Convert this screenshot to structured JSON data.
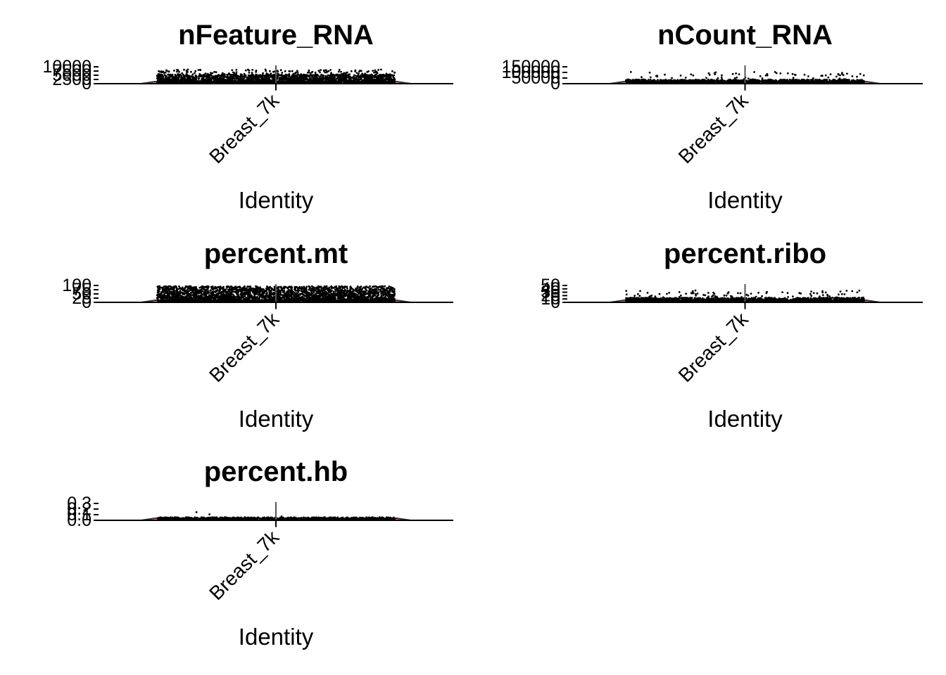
{
  "chart_data": [
    {
      "type": "violin",
      "title": "nFeature_RNA",
      "xlabel": "Identity",
      "ylabel": "",
      "categories": [
        "Breast_7k"
      ],
      "yticks": [
        "0",
        "2500",
        "5000",
        "7500",
        "10000"
      ],
      "ylim": [
        0,
        10000
      ],
      "values_summary": {
        "Breast_7k": {
          "min": 200,
          "max": 10000
        }
      },
      "fill_color": "#F8766D",
      "point_color": "#000000"
    },
    {
      "type": "violin",
      "title": "nCount_RNA",
      "xlabel": "Identity",
      "ylabel": "",
      "categories": [
        "Breast_7k"
      ],
      "yticks": [
        "0",
        "50000",
        "100000",
        "150000"
      ],
      "ylim": [
        0,
        150000
      ],
      "values_summary": {
        "Breast_7k": {
          "min": 500,
          "max": 150000
        }
      },
      "fill_color": "#F8766D",
      "point_color": "#000000"
    },
    {
      "type": "violin",
      "title": "percent.mt",
      "xlabel": "Identity",
      "ylabel": "",
      "categories": [
        "Breast_7k"
      ],
      "yticks": [
        "0",
        "25",
        "50",
        "75",
        "100"
      ],
      "ylim": [
        0,
        100
      ],
      "values_summary": {
        "Breast_7k": {
          "min": 0,
          "max": 100
        }
      },
      "fill_color": "#F8766D",
      "point_color": "#000000"
    },
    {
      "type": "violin",
      "title": "percent.ribo",
      "xlabel": "Identity",
      "ylabel": "",
      "categories": [
        "Breast_7k"
      ],
      "yticks": [
        "0",
        "10",
        "20",
        "30",
        "40",
        "50"
      ],
      "ylim": [
        0,
        50
      ],
      "values_summary": {
        "Breast_7k": {
          "min": 0,
          "max": 50
        }
      },
      "fill_color": "#F8766D",
      "point_color": "#000000"
    },
    {
      "type": "violin",
      "title": "percent.hb",
      "xlabel": "Identity",
      "ylabel": "",
      "categories": [
        "Breast_7k"
      ],
      "yticks": [
        "0.0",
        "0.1",
        "0.2",
        "0.3"
      ],
      "ylim": [
        0,
        0.3
      ],
      "values_summary": {
        "Breast_7k": {
          "min": 0,
          "max": 0.3
        }
      },
      "fill_color": "#F8766D",
      "point_color": "#000000"
    }
  ]
}
